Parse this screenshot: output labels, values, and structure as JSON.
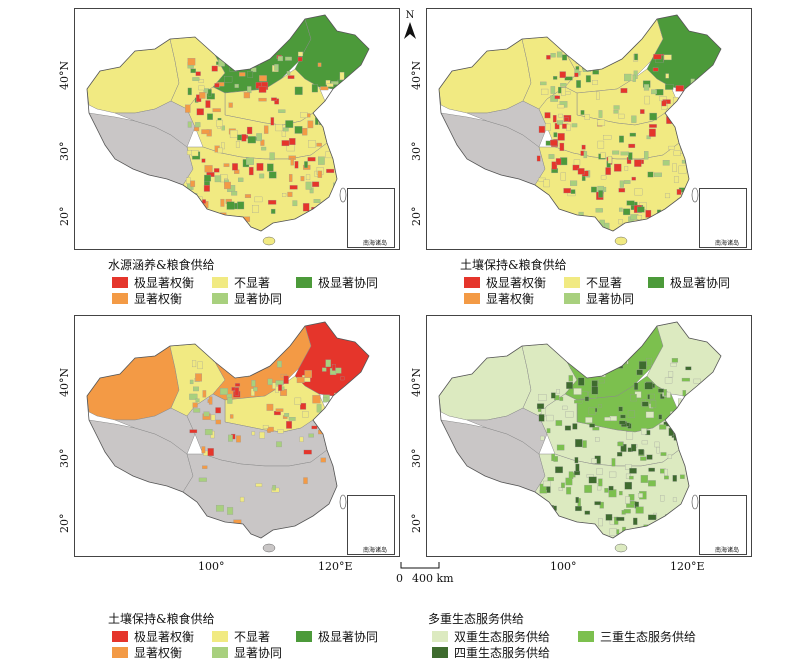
{
  "north_label": "N",
  "lat_labels": [
    "40°N",
    "30°",
    "20°"
  ],
  "lon_labels": [
    "100°",
    "120°E"
  ],
  "scale": {
    "zero": "0",
    "dist": "400 km"
  },
  "inset_label": "南海诸岛",
  "legend_water": {
    "title": "水源涵养&粮食供给",
    "items": [
      "极显著权衡",
      "显著权衡",
      "不显著",
      "显著协同",
      "极显著协同"
    ]
  },
  "legend_soil_top": {
    "title": "土壤保持&粮食供给",
    "items": [
      "极显著权衡",
      "显著权衡",
      "不显著",
      "显著协同",
      "极显著协同"
    ]
  },
  "legend_soil_bottom": {
    "title": "土壤保持&粮食供给",
    "items": [
      "极显著权衡",
      "显著权衡",
      "不显著",
      "显著协同",
      "极显著协同"
    ]
  },
  "legend_multi": {
    "title": "多重生态服务供给",
    "items": [
      "双重生态服务供给",
      "三重生态服务供给",
      "四重生态服务供给"
    ]
  },
  "colors": {
    "extreme_tradeoff": "#e5352b",
    "significant_tradeoff": "#f39a45",
    "not_significant": "#f1ea82",
    "significant_synergy": "#a8d07e",
    "extreme_synergy": "#4c9a3a",
    "no_data": "#c9c6c6",
    "dual": "#dceac0",
    "triple": "#7cc04e",
    "quad": "#3e6b2e"
  }
}
